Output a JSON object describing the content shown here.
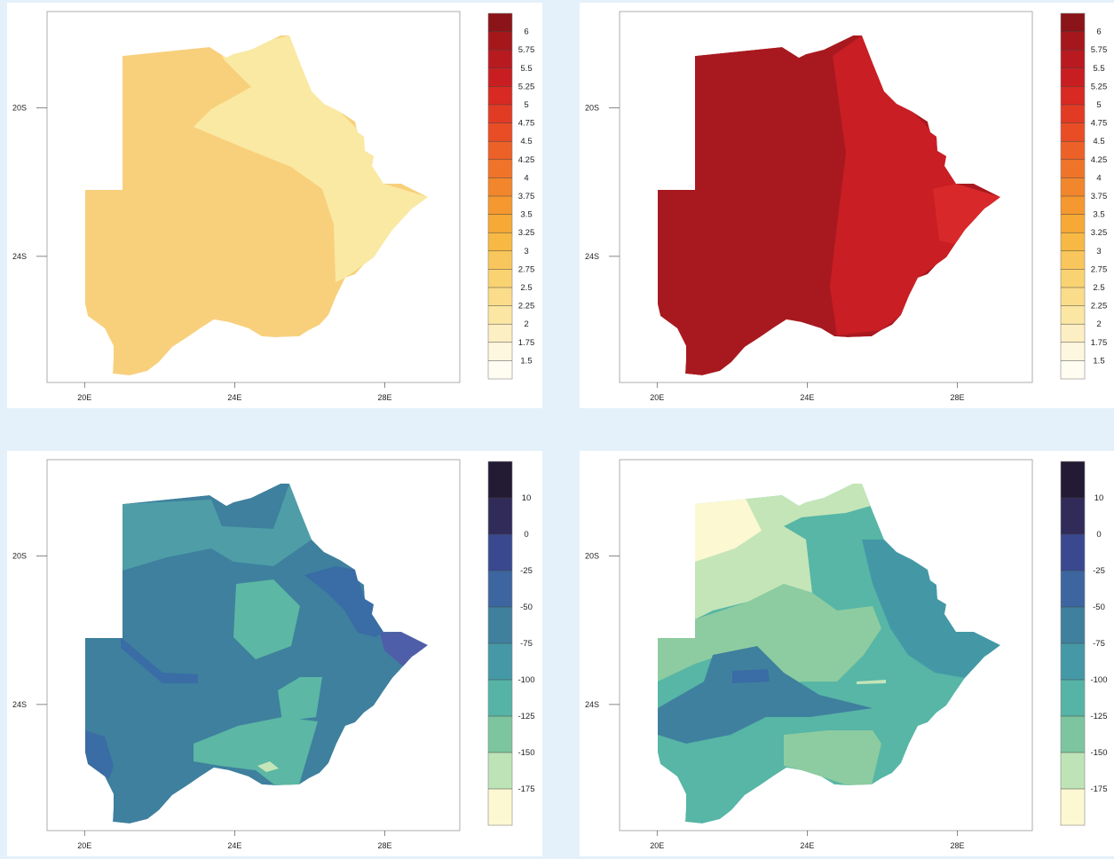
{
  "map_axes": {
    "x_ticks": [
      {
        "value": 20,
        "label": "20E"
      },
      {
        "value": 24,
        "label": "24E"
      },
      {
        "value": 28,
        "label": "28E"
      }
    ],
    "y_ticks": [
      {
        "value": -20,
        "label": "20S"
      },
      {
        "value": -24,
        "label": "24S"
      }
    ],
    "lon_range": [
      19,
      30
    ],
    "lat_range": [
      -27.4,
      -17.4
    ]
  },
  "colorbars": {
    "warm": {
      "labels": [
        "6",
        "5.75",
        "5.5",
        "5.25",
        "5",
        "4.75",
        "4.5",
        "4.25",
        "4",
        "3.75",
        "3.5",
        "3.25",
        "3",
        "2.75",
        "2.5",
        "2.25",
        "2",
        "1.75",
        "1.5"
      ],
      "colors": [
        "#8a1418",
        "#a6171c",
        "#b81a20",
        "#c81e22",
        "#d82a22",
        "#e23b24",
        "#e84d26",
        "#ec6128",
        "#ef742a",
        "#f2862c",
        "#f4982f",
        "#f6a935",
        "#f7b944",
        "#f8c65c",
        "#f9d272",
        "#fadc8a",
        "#fbe6a3",
        "#fcefc3",
        "#fdf7df",
        "#fffcf2"
      ]
    },
    "cool": {
      "labels": [
        "10",
        "0",
        "-25",
        "-50",
        "-75",
        "-100",
        "-125",
        "-150",
        "-175"
      ],
      "colors": [
        "#231a33",
        "#312b5a",
        "#3a4890",
        "#3d66a0",
        "#3f809e",
        "#4598a6",
        "#55b4a6",
        "#7dc59f",
        "#bee3b7",
        "#fcf8d2"
      ]
    }
  },
  "maps": [
    {
      "colorbar": "warm",
      "base_color": "#f8d07c",
      "east_color": "#fae9a3",
      "extra_color": "#fae9a3"
    },
    {
      "colorbar": "warm",
      "base_color": "#a8191f",
      "east_color": "#c81e24",
      "extra_color": "#d8282a"
    },
    {
      "colorbar": "cool",
      "base_color": "#3e809e",
      "east_color": "#3a6ca5",
      "extra_color": "#4f5ea8"
    },
    {
      "colorbar": "cool",
      "base_color": "#57b6a6",
      "east_color": "#4498a6",
      "extra_color": "#c4e5b8"
    }
  ]
}
